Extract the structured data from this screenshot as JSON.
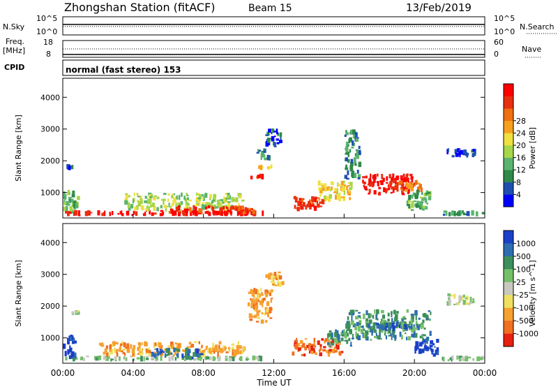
{
  "header": {
    "station": "Zhongshan Station (fitACF)",
    "beam": "Beam 15",
    "date": "13/Feb/2019"
  },
  "noise_panel": {
    "left_label": "N.Sky",
    "right_label": "N.Search",
    "ytick_top": "10^5",
    "ytick_bottom": "10^0",
    "rtick_top": "10^5",
    "rtick_bottom": "10^0"
  },
  "freq_panel": {
    "left_label_1": "Freq.",
    "left_label_2": "[MHz]",
    "ytick_top": "18",
    "ytick_bottom": "8",
    "right_label": "Nave",
    "rtick_top": "60",
    "rtick_bottom": "0"
  },
  "cpid_panel": {
    "left_label": "CPID",
    "text": "normal (fast stereo) 153"
  },
  "chart_data": [
    {
      "type": "heatmap",
      "name": "power",
      "ylabel": "Slant Range [km]",
      "yticks": [
        "1000",
        "2000",
        "3000",
        "4000"
      ],
      "ylim": [
        200,
        4600
      ],
      "xlim": [
        0,
        24
      ],
      "colorbar": {
        "label": "Power [dB]",
        "ticks": [
          "4",
          "8",
          "12",
          "16",
          "20",
          "24",
          "28"
        ],
        "colors": [
          "#0000ff",
          "#1e4fb0",
          "#2f8a4a",
          "#5ab46e",
          "#a6d64a",
          "#f0e040",
          "#f6a020",
          "#f07010",
          "#e83010",
          "#ff0000"
        ]
      },
      "regions": [
        {
          "t": [
            0.0,
            11.5
          ],
          "r": [
            250,
            450
          ],
          "level": 9
        },
        {
          "t": [
            0.0,
            1.0
          ],
          "r": [
            300,
            1100
          ],
          "level": 3
        },
        {
          "t": [
            0.2,
            1.0
          ],
          "r": [
            1700,
            1900
          ],
          "level": 1
        },
        {
          "t": [
            3.5,
            10.5
          ],
          "r": [
            400,
            1000
          ],
          "level": 4
        },
        {
          "t": [
            6.0,
            11.0
          ],
          "r": [
            300,
            600
          ],
          "level": 8
        },
        {
          "t": [
            10.5,
            11.5
          ],
          "r": [
            1400,
            1600
          ],
          "level": 8
        },
        {
          "t": [
            11.0,
            12.0
          ],
          "r": [
            1700,
            1900
          ],
          "level": 6
        },
        {
          "t": [
            11.0,
            12.0
          ],
          "r": [
            2000,
            2400
          ],
          "level": 2
        },
        {
          "t": [
            11.5,
            12.5
          ],
          "r": [
            2400,
            3100
          ],
          "level": 1
        },
        {
          "t": [
            13.0,
            15.0
          ],
          "r": [
            400,
            900
          ],
          "level": 8
        },
        {
          "t": [
            14.5,
            16.5
          ],
          "r": [
            700,
            1400
          ],
          "level": 5
        },
        {
          "t": [
            16.0,
            17.0
          ],
          "r": [
            1400,
            3000
          ],
          "level": 2
        },
        {
          "t": [
            17.0,
            20.0
          ],
          "r": [
            900,
            1600
          ],
          "level": 9
        },
        {
          "t": [
            18.5,
            20.5
          ],
          "r": [
            1000,
            1400
          ],
          "level": 7
        },
        {
          "t": [
            19.5,
            21.0
          ],
          "r": [
            400,
            1100
          ],
          "level": 3
        },
        {
          "t": [
            21.8,
            23.6
          ],
          "r": [
            2100,
            2400
          ],
          "level": 1
        },
        {
          "t": [
            21.5,
            24.0
          ],
          "r": [
            250,
            450
          ],
          "level": 2
        }
      ]
    },
    {
      "type": "heatmap",
      "name": "velocity",
      "ylabel": "Slant Range [km]",
      "yticks": [
        "1000",
        "2000",
        "3000",
        "4000"
      ],
      "ylim": [
        200,
        4600
      ],
      "xlim": [
        0,
        24
      ],
      "xlabel": "Time UT",
      "xticks": [
        "00:00",
        "04:00",
        "08:00",
        "12:00",
        "16:00",
        "20:00",
        "00:00"
      ],
      "colorbar": {
        "label": "Velocity [m s^-1]",
        "ticks": [
          "1000",
          "500",
          "100",
          "25",
          "-25",
          "-100",
          "-500",
          "-1000"
        ],
        "colors": [
          "#1a3fc8",
          "#2e6db0",
          "#3c8f5a",
          "#76bf6a",
          "#c8c8c0",
          "#f0e060",
          "#f6a030",
          "#f07020",
          "#e82010"
        ]
      },
      "regions": [
        {
          "t": [
            0.0,
            11.5
          ],
          "r": [
            250,
            450
          ],
          "level": 3
        },
        {
          "t": [
            0.0,
            0.8
          ],
          "r": [
            300,
            1100
          ],
          "level": 0
        },
        {
          "t": [
            0.2,
            1.0
          ],
          "r": [
            1700,
            1900
          ],
          "level": 4
        },
        {
          "t": [
            2.0,
            10.5
          ],
          "r": [
            400,
            900
          ],
          "level": 6
        },
        {
          "t": [
            5.0,
            8.0
          ],
          "r": [
            300,
            700
          ],
          "level": 1
        },
        {
          "t": [
            10.5,
            12.0
          ],
          "r": [
            1400,
            2600
          ],
          "level": 6
        },
        {
          "t": [
            11.5,
            12.8
          ],
          "r": [
            2600,
            3100
          ],
          "level": 6
        },
        {
          "t": [
            13.0,
            16.0
          ],
          "r": [
            400,
            1000
          ],
          "level": 7
        },
        {
          "t": [
            15.0,
            16.5
          ],
          "r": [
            700,
            1300
          ],
          "level": 2
        },
        {
          "t": [
            16.0,
            21.0
          ],
          "r": [
            900,
            1900
          ],
          "level": 2
        },
        {
          "t": [
            17.0,
            20.0
          ],
          "r": [
            1200,
            1500
          ],
          "level": 1
        },
        {
          "t": [
            20.0,
            21.5
          ],
          "r": [
            400,
            1000
          ],
          "level": 0
        },
        {
          "t": [
            21.8,
            23.6
          ],
          "r": [
            2000,
            2400
          ],
          "level": 4
        },
        {
          "t": [
            21.5,
            24.0
          ],
          "r": [
            250,
            450
          ],
          "level": 3
        }
      ]
    }
  ]
}
